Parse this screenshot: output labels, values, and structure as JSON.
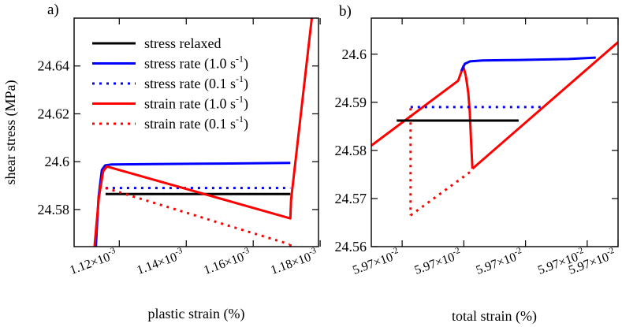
{
  "chart_data": [
    {
      "panel_label": "a)",
      "type": "line",
      "xlabel": "plastic strain (%)",
      "ylabel": "shear stress (MPa)",
      "xlim": [
        1.1065,
        1.1795
      ],
      "ylim": [
        24.5645,
        24.66
      ],
      "x_exponent": "-3",
      "x_ticks": [
        1.12,
        1.14,
        1.16,
        1.18
      ],
      "x_tick_labels": [
        "1.12×10",
        "1.14×10",
        "1.16×10",
        "1.18×10"
      ],
      "y_ticks": [
        24.58,
        24.6,
        24.62,
        24.64
      ],
      "y_tick_labels": [
        "24.58",
        "24.6",
        "24.62",
        "24.64"
      ],
      "legend": [
        {
          "label": "stress relaxed",
          "color": "#000000",
          "dash": "solid"
        },
        {
          "label": "stress rate (1.0 s",
          "sup": "-1",
          "suffix": ")",
          "color": "#0000ff",
          "dash": "solid"
        },
        {
          "label": "stress rate (0.1 s",
          "sup": "-1",
          "suffix": ")",
          "color": "#0000ff",
          "dash": "dotted"
        },
        {
          "label": "strain rate (1.0 s",
          "sup": "-1",
          "suffix": ")",
          "color": "#ff0000",
          "dash": "solid"
        },
        {
          "label": "strain rate (0.1 s",
          "sup": "-1",
          "suffix": ")",
          "color": "#ff0000",
          "dash": "dotted"
        }
      ],
      "series": [
        {
          "name": "stress relaxed",
          "color": "#000000",
          "dash": "solid",
          "x": [
            1.1159,
            1.1711
          ],
          "y": [
            24.5865,
            24.5865
          ]
        },
        {
          "name": "stress rate (1.0 s-1)",
          "color": "#0000ff",
          "dash": "solid",
          "x": [
            1.113,
            1.1138,
            1.1148,
            1.1158,
            1.1175,
            1.13,
            1.15,
            1.1711
          ],
          "y": [
            24.5645,
            24.585,
            24.5965,
            24.5985,
            24.5988,
            24.599,
            24.5992,
            24.5995
          ]
        },
        {
          "name": "stress rate (0.1 s-1)",
          "color": "#0000ff",
          "dash": "dotted",
          "x": [
            1.1159,
            1.1711
          ],
          "y": [
            24.589,
            24.589
          ]
        },
        {
          "name": "strain rate (1.0 s-1)",
          "color": "#ff0000",
          "dash": "solid",
          "x": [
            1.1126,
            1.1139,
            1.1152,
            1.1163,
            1.1711,
            1.1713,
            1.1775
          ],
          "y": [
            24.5645,
            24.585,
            24.596,
            24.598,
            24.5763,
            24.584,
            24.66
          ]
        },
        {
          "name": "strain rate (0.1 s-1)",
          "color": "#ff0000",
          "dash": "dotted",
          "x": [
            1.1159,
            1.1708
          ],
          "y": [
            24.589,
            24.5655
          ]
        },
        {
          "name": "strain rate (0.1 s-1) reload",
          "color": "#ff0000",
          "dash": "dotted",
          "x": [
            1.1711,
            1.1711
          ],
          "y": [
            24.5655,
            24.5645
          ]
        }
      ]
    },
    {
      "panel_label": "b)",
      "type": "line",
      "xlabel": "total strain (%)",
      "ylabel": "",
      "xlim": [
        0,
        100
      ],
      "ylim": [
        24.56,
        24.6075
      ],
      "x_tick_positions": [
        12.5,
        37.5,
        62.5,
        87.5,
        100
      ],
      "x_tick_labels": [
        "5.97×10",
        "5.97×10",
        "5.97×10",
        "5.97×10",
        "5.97×10"
      ],
      "x_exponent": "-2",
      "y_ticks": [
        24.56,
        24.57,
        24.58,
        24.59,
        24.6
      ],
      "y_tick_labels": [
        "24.56",
        "24.57",
        "24.58",
        "24.59",
        "24.6"
      ],
      "series": [
        {
          "name": "strain rate (1.0 s-1) loading",
          "color": "#ff0000",
          "dash": "solid",
          "x": [
            0,
            35.2,
            37.3,
            38.3
          ],
          "y": [
            24.581,
            24.5945,
            24.5975,
            24.5955
          ]
        },
        {
          "name": "strain rate (1.0 s-1) relax",
          "color": "#ff0000",
          "dash": "solid",
          "x": [
            38.3,
            39.3,
            39.9,
            40.4,
            41.0
          ],
          "y": [
            24.5955,
            24.592,
            24.588,
            24.582,
            24.5762
          ]
        },
        {
          "name": "strain rate (1.0 s-1) reload",
          "color": "#ff0000",
          "dash": "solid",
          "x": [
            41.0,
            100
          ],
          "y": [
            24.5762,
            24.6025
          ]
        },
        {
          "name": "stress rate (1.0 s-1)",
          "color": "#0000ff",
          "dash": "solid",
          "x": [
            36.5,
            37.9,
            40.0,
            45.0,
            60.0,
            80.0,
            91.0
          ],
          "y": [
            24.5965,
            24.598,
            24.5985,
            24.5987,
            24.5988,
            24.599,
            24.5993
          ]
        },
        {
          "name": "stress rate (0.1 s-1)",
          "color": "#0000ff",
          "dash": "dotted",
          "x": [
            15.9,
            69.5
          ],
          "y": [
            24.589,
            24.589
          ]
        },
        {
          "name": "stress relaxed",
          "color": "#000000",
          "dash": "solid",
          "x": [
            10.3,
            59.7
          ],
          "y": [
            24.5862,
            24.5862
          ]
        },
        {
          "name": "strain rate (0.1 s-1) relax",
          "color": "#ff0000",
          "dash": "dotted",
          "x": [
            15.9,
            15.9
          ],
          "y": [
            24.5888,
            24.5665
          ]
        },
        {
          "name": "strain rate (0.1 s-1) reload",
          "color": "#ff0000",
          "dash": "dotted",
          "x": [
            15.9,
            40.0
          ],
          "y": [
            24.5665,
            24.5755
          ]
        }
      ]
    }
  ]
}
